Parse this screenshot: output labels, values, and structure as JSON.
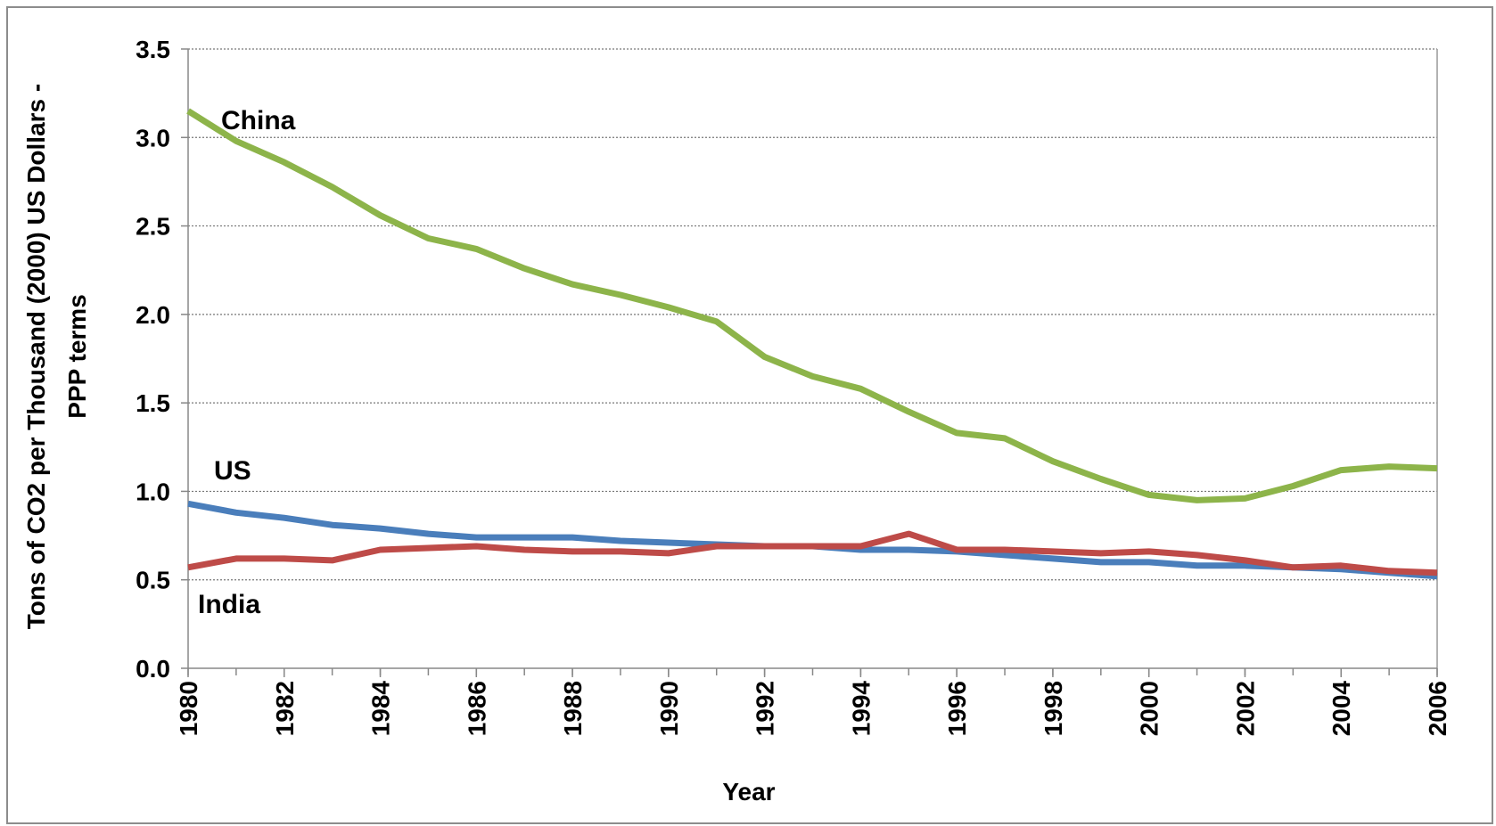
{
  "chart_data": {
    "type": "line",
    "x_label": "Year",
    "y_label": [
      "Tons of CO2 per Thousand (2000) US Dollars -",
      "PPP terms"
    ],
    "x": [
      1980,
      1981,
      1982,
      1983,
      1984,
      1985,
      1986,
      1987,
      1988,
      1989,
      1990,
      1991,
      1992,
      1993,
      1994,
      1995,
      1996,
      1997,
      1998,
      1999,
      2000,
      2001,
      2002,
      2003,
      2004,
      2005,
      2006
    ],
    "series": [
      {
        "name": "China",
        "color": "#8db44a",
        "values": [
          3.15,
          2.98,
          2.86,
          2.72,
          2.56,
          2.43,
          2.37,
          2.26,
          2.17,
          2.11,
          2.04,
          1.96,
          1.76,
          1.65,
          1.58,
          1.45,
          1.33,
          1.3,
          1.17,
          1.07,
          0.98,
          0.95,
          0.96,
          1.03,
          1.12,
          1.14,
          1.13
        ]
      },
      {
        "name": "US",
        "color": "#4a7ebb",
        "values": [
          0.93,
          0.88,
          0.85,
          0.81,
          0.79,
          0.76,
          0.74,
          0.74,
          0.74,
          0.72,
          0.71,
          0.7,
          0.69,
          0.69,
          0.67,
          0.67,
          0.66,
          0.64,
          0.62,
          0.6,
          0.6,
          0.58,
          0.58,
          0.57,
          0.56,
          0.54,
          0.52
        ]
      },
      {
        "name": "India",
        "color": "#be4b48",
        "values": [
          0.57,
          0.62,
          0.62,
          0.61,
          0.67,
          0.68,
          0.69,
          0.67,
          0.66,
          0.66,
          0.65,
          0.69,
          0.69,
          0.69,
          0.69,
          0.76,
          0.67,
          0.67,
          0.66,
          0.65,
          0.66,
          0.64,
          0.61,
          0.57,
          0.58,
          0.55,
          0.54
        ]
      }
    ],
    "xlim": [
      1980,
      2006
    ],
    "xticks": [
      1980,
      1982,
      1984,
      1986,
      1988,
      1990,
      1992,
      1994,
      1996,
      1998,
      2000,
      2002,
      2004,
      2006
    ],
    "ylim": [
      0,
      3.5
    ],
    "yticks": [
      {
        "value": 0,
        "label": "0.0"
      },
      0.5,
      {
        "value": 1,
        "label": "1.0"
      },
      1.5,
      {
        "value": 2,
        "label": "2.0"
      },
      2.5,
      {
        "value": 3,
        "label": "3.0"
      },
      3.5
    ],
    "grid": true
  }
}
